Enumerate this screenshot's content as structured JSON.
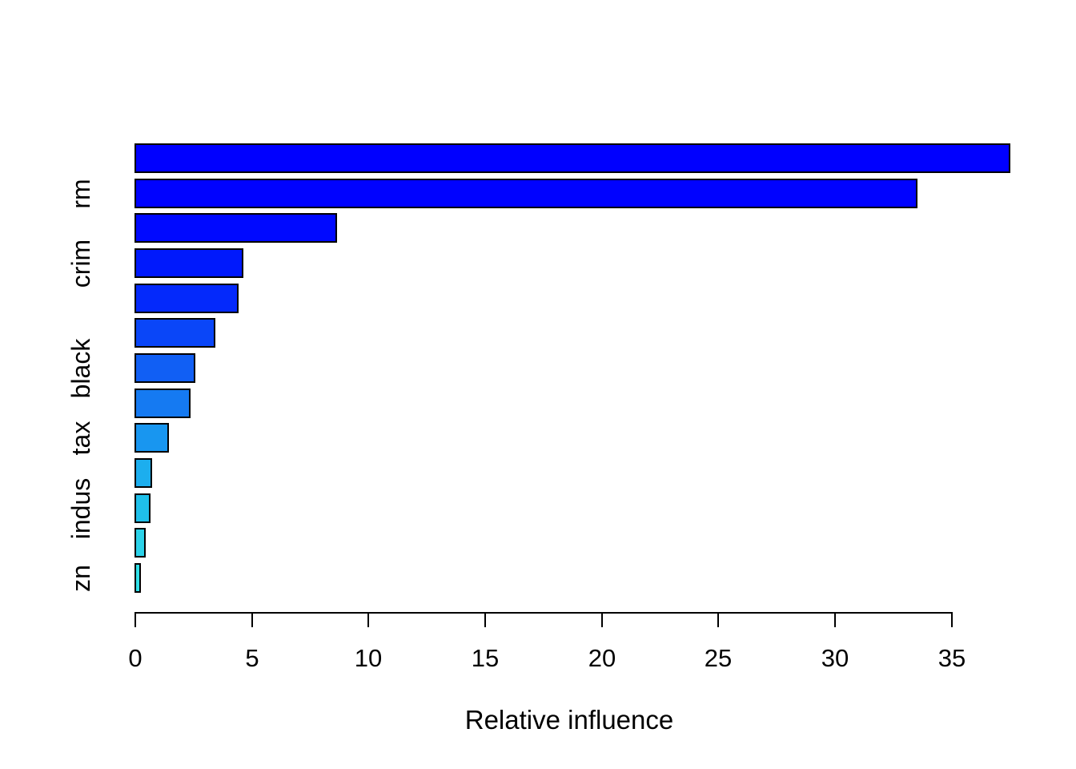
{
  "figure": {
    "background_color": "#ffffff",
    "text_color": "#000000"
  },
  "chart_data": {
    "type": "bar",
    "orientation": "horizontal",
    "title": "",
    "xlabel": "Relative influence",
    "ylabel": "",
    "xlim": [
      0,
      35
    ],
    "x_ticks": [
      0,
      5,
      10,
      15,
      20,
      25,
      30,
      35
    ],
    "grid": "off",
    "legend": "none",
    "axis_color": "#000000",
    "bar_border_color": "#000000",
    "note": "bars ordered top to bottom; only alternating y-axis labels are rendered in the plot",
    "bars": [
      {
        "label": "",
        "value": 37.5,
        "color": "#0000FF"
      },
      {
        "label": "rm",
        "value": 33.5,
        "color": "#0002FF"
      },
      {
        "label": "",
        "value": 8.6,
        "color": "#0009FF"
      },
      {
        "label": "crim",
        "value": 4.6,
        "color": "#0019FC"
      },
      {
        "label": "",
        "value": 4.4,
        "color": "#0429FB"
      },
      {
        "label": "",
        "value": 3.4,
        "color": "#0A46F8"
      },
      {
        "label": "black",
        "value": 2.55,
        "color": "#115FF4"
      },
      {
        "label": "",
        "value": 2.35,
        "color": "#157AF2"
      },
      {
        "label": "tax",
        "value": 1.42,
        "color": "#1896F0"
      },
      {
        "label": "",
        "value": 0.67,
        "color": "#1CAEEE"
      },
      {
        "label": "indus",
        "value": 0.62,
        "color": "#1FC0EA"
      },
      {
        "label": "",
        "value": 0.42,
        "color": "#2BD2E9"
      },
      {
        "label": "zn",
        "value": 0.2,
        "color": "#30E0E8"
      }
    ]
  }
}
